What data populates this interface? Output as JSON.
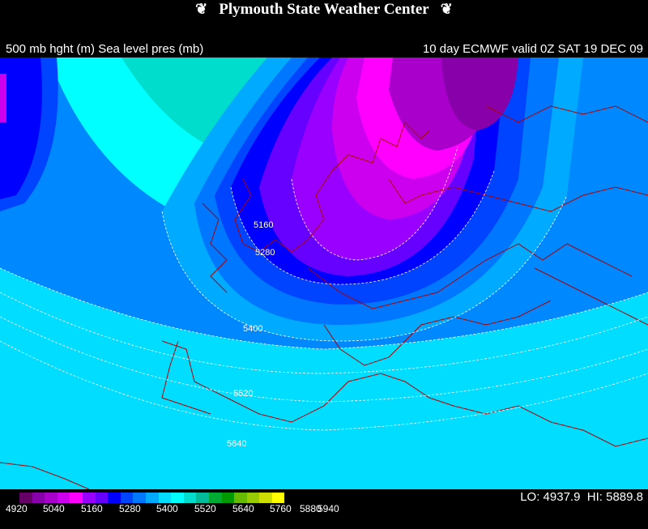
{
  "header": {
    "title": "Plymouth State Weather Center",
    "left_label": "500 mb hght (m) Sea level pres (mb)",
    "right_label": "10 day ECMWF valid 0Z SAT 19 DEC 09"
  },
  "map_labels": {
    "c5160": "5160",
    "c5280": "5280",
    "c5400": "5400",
    "c5520": "5520",
    "c5640": "5640"
  },
  "legend": {
    "colors": [
      "#660066",
      "#8800aa",
      "#aa00cc",
      "#cc00ee",
      "#ff00ff",
      "#9900ff",
      "#6600ff",
      "#0000ff",
      "#0044ff",
      "#0077ff",
      "#00aaff",
      "#00ddff",
      "#00ffff",
      "#00ddcc",
      "#00bb99",
      "#00aa33",
      "#009900",
      "#66bb00",
      "#99cc00",
      "#ccdd00",
      "#ffff00"
    ],
    "ticks": [
      "4920",
      "5040",
      "5160",
      "5280",
      "5400",
      "5520",
      "5640",
      "5760",
      "5880",
      "5940"
    ]
  },
  "stats": {
    "lo": "LO: 4937.9",
    "hi": "HI: 5889.8"
  }
}
